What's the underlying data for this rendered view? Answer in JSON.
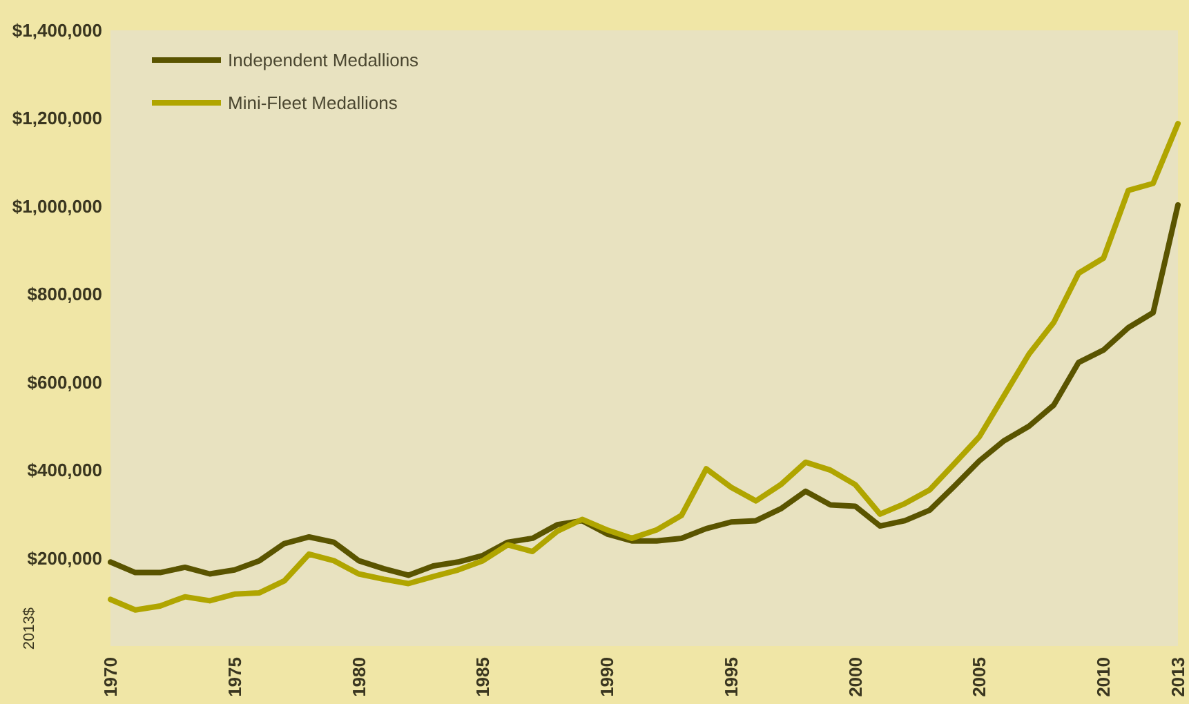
{
  "chart_data": {
    "type": "line",
    "ylabel": "2013$",
    "x": [
      1970,
      1971,
      1972,
      1973,
      1974,
      1975,
      1976,
      1977,
      1978,
      1979,
      1980,
      1981,
      1982,
      1983,
      1984,
      1985,
      1986,
      1987,
      1988,
      1989,
      1990,
      1991,
      1992,
      1993,
      1994,
      1995,
      1996,
      1997,
      1998,
      1999,
      2000,
      2001,
      2002,
      2003,
      2004,
      2005,
      2006,
      2007,
      2008,
      2009,
      2010,
      2011,
      2012,
      2013
    ],
    "series": [
      {
        "name": "Independent Medallions",
        "color": "#5a5400",
        "values": [
          191000,
          167000,
          167000,
          179000,
          164000,
          173000,
          194000,
          233000,
          248000,
          236000,
          194000,
          176000,
          161000,
          182000,
          191000,
          206000,
          236000,
          245000,
          276000,
          285000,
          255000,
          239000,
          239000,
          245000,
          267000,
          282000,
          285000,
          312000,
          352000,
          321000,
          318000,
          273000,
          285000,
          309000,
          364000,
          421000,
          467000,
          500000,
          548000,
          645000,
          673000,
          724000,
          758000,
          1003000
        ]
      },
      {
        "name": "Mini-Fleet Medallions",
        "color": "#b0a500",
        "values": [
          106000,
          82000,
          91000,
          112000,
          103000,
          118000,
          121000,
          148000,
          209000,
          194000,
          164000,
          152000,
          142000,
          158000,
          173000,
          194000,
          230000,
          215000,
          261000,
          288000,
          264000,
          245000,
          264000,
          297000,
          403000,
          361000,
          330000,
          367000,
          418000,
          400000,
          367000,
          300000,
          324000,
          355000,
          415000,
          476000,
          570000,
          664000,
          736000,
          848000,
          882000,
          1036000,
          1052000,
          1188000
        ]
      }
    ],
    "xlim": [
      1970,
      2013
    ],
    "xticks": [
      1970,
      1975,
      1980,
      1985,
      1990,
      1995,
      2000,
      2005,
      2010,
      2013
    ],
    "ylim": [
      0,
      1400000
    ],
    "yticks": [
      {
        "value": 200000,
        "label": "$200,000"
      },
      {
        "value": 400000,
        "label": "$400,000"
      },
      {
        "value": 600000,
        "label": "$600,000"
      },
      {
        "value": 800000,
        "label": "$800,000"
      },
      {
        "value": 1000000,
        "label": "$1,000,000"
      },
      {
        "value": 1200000,
        "label": "$1,200,000"
      },
      {
        "value": 1400000,
        "label": "$1,400,000"
      }
    ],
    "grid": false,
    "legend": "top left",
    "marker": "none",
    "line_style": "solid"
  }
}
